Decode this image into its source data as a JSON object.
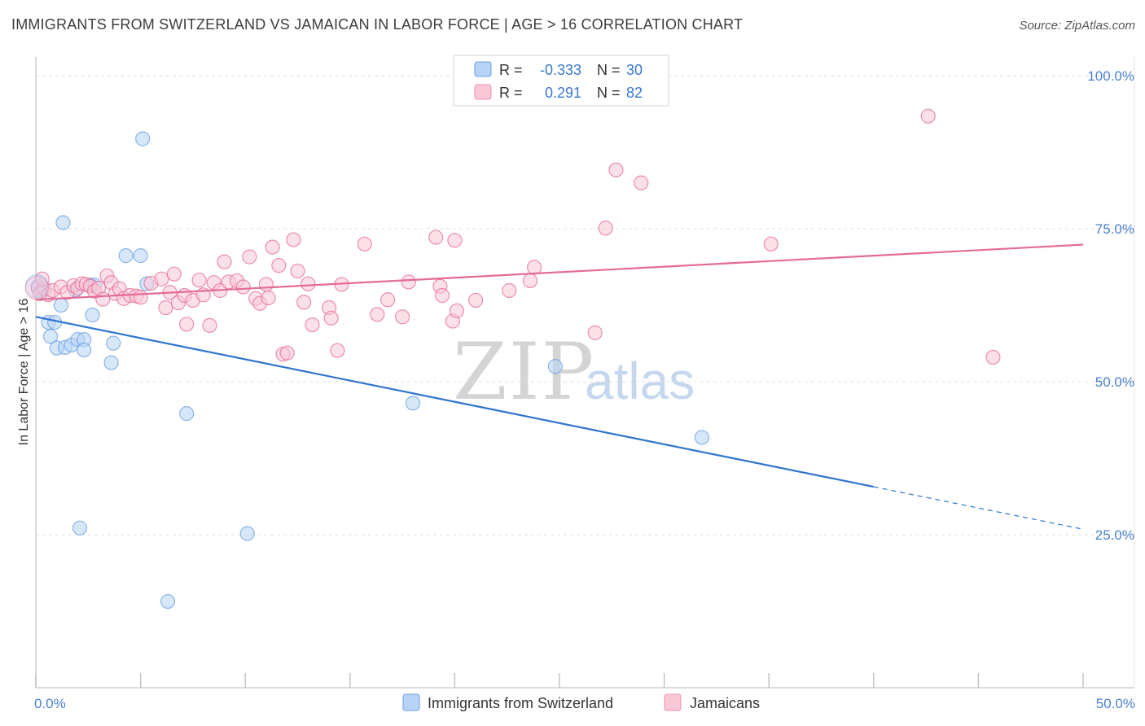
{
  "title": "IMMIGRANTS FROM SWITZERLAND VS JAMAICAN IN LABOR FORCE | AGE > 16 CORRELATION CHART",
  "source": "Source: ZipAtlas.com",
  "watermark": {
    "zip": "ZIP",
    "atlas": "atlas"
  },
  "legend_top": [
    {
      "r_label": "R =",
      "r_value": "-0.333",
      "n_label": "N =",
      "n_value": "30",
      "fill": "#b7d3f5",
      "stroke": "#6a9fe0"
    },
    {
      "r_label": "R =",
      "r_value": "0.291",
      "n_label": "N =",
      "n_value": "82",
      "fill": "#f9c7d6",
      "stroke": "#ec91ad"
    }
  ],
  "legend_bottom": [
    {
      "label": "Immigrants from Switzerland",
      "fill": "#b7d3f5",
      "stroke": "#6a9fe0"
    },
    {
      "label": "Jamaicans",
      "fill": "#f9c7d6",
      "stroke": "#ec91ad"
    }
  ],
  "chart_data": {
    "type": "scatter",
    "title": "IMMIGRANTS FROM SWITZERLAND VS JAMAICAN IN LABOR FORCE | AGE > 16 CORRELATION CHART",
    "xlabel": "",
    "ylabel": "In Labor Force | Age > 16",
    "xlim": [
      0,
      50
    ],
    "ylim": [
      0,
      102
    ],
    "x_ticks": [
      0,
      50
    ],
    "x_tick_labels": [
      "0.0%",
      "50.0%"
    ],
    "y_ticks": [
      25,
      50,
      75,
      100
    ],
    "y_tick_labels": [
      "25.0%",
      "50.0%",
      "75.0%",
      "100.0%"
    ],
    "grid": true,
    "legend_position": "top-center",
    "series": [
      {
        "name": "Immigrants from Switzerland",
        "color": "#6a9fe0",
        "fill": "#b7d3f5",
        "trend": {
          "x": [
            0,
            40,
            50
          ],
          "y": [
            60.6,
            32.8,
            25.9
          ],
          "solid_until": 40
        },
        "points": [
          [
            0.1,
            65.6
          ],
          [
            0.3,
            64.7
          ],
          [
            0.6,
            59.7
          ],
          [
            0.7,
            57.4
          ],
          [
            0.9,
            59.7
          ],
          [
            1.0,
            55.5
          ],
          [
            1.2,
            62.5
          ],
          [
            1.3,
            76.0
          ],
          [
            1.4,
            55.6
          ],
          [
            1.7,
            56.0
          ],
          [
            1.9,
            65.0
          ],
          [
            2.0,
            56.9
          ],
          [
            2.3,
            56.9
          ],
          [
            2.3,
            55.2
          ],
          [
            2.6,
            65.8
          ],
          [
            2.7,
            60.9
          ],
          [
            2.8,
            65.8
          ],
          [
            3.6,
            53.1
          ],
          [
            3.7,
            56.3
          ],
          [
            4.3,
            70.6
          ],
          [
            5.0,
            70.6
          ],
          [
            5.1,
            89.7
          ],
          [
            5.3,
            66.0
          ],
          [
            6.3,
            14.1
          ],
          [
            7.2,
            44.8
          ],
          [
            10.1,
            25.2
          ],
          [
            2.1,
            26.1
          ],
          [
            18.0,
            46.5
          ],
          [
            24.8,
            52.5
          ],
          [
            31.8,
            40.9
          ]
        ]
      },
      {
        "name": "Jamaicans",
        "color": "#e46b94",
        "fill": "#f9c7d6",
        "trend": {
          "x": [
            0,
            50
          ],
          "y": [
            63.4,
            72.4
          ],
          "solid_until": 50
        },
        "points": [
          [
            0.1,
            65.3
          ],
          [
            0.2,
            64.4
          ],
          [
            0.4,
            65.2
          ],
          [
            0.6,
            64.2
          ],
          [
            0.8,
            64.9
          ],
          [
            1.2,
            65.5
          ],
          [
            1.5,
            64.6
          ],
          [
            1.8,
            65.7
          ],
          [
            2.0,
            65.3
          ],
          [
            2.2,
            66.0
          ],
          [
            2.4,
            65.9
          ],
          [
            2.6,
            65.6
          ],
          [
            2.8,
            64.8
          ],
          [
            3.0,
            65.3
          ],
          [
            3.2,
            63.5
          ],
          [
            3.4,
            67.3
          ],
          [
            3.6,
            66.2
          ],
          [
            3.8,
            64.4
          ],
          [
            4.0,
            65.2
          ],
          [
            4.2,
            63.6
          ],
          [
            4.5,
            64.1
          ],
          [
            4.8,
            64.0
          ],
          [
            5.0,
            63.8
          ],
          [
            5.5,
            66.1
          ],
          [
            6.0,
            66.8
          ],
          [
            6.2,
            62.1
          ],
          [
            6.4,
            64.6
          ],
          [
            6.6,
            67.6
          ],
          [
            6.8,
            62.9
          ],
          [
            7.1,
            64.1
          ],
          [
            7.2,
            59.4
          ],
          [
            7.5,
            63.3
          ],
          [
            7.8,
            66.6
          ],
          [
            8.0,
            64.2
          ],
          [
            8.3,
            59.2
          ],
          [
            8.5,
            66.2
          ],
          [
            8.8,
            64.9
          ],
          [
            9.0,
            69.6
          ],
          [
            9.2,
            66.3
          ],
          [
            9.6,
            66.5
          ],
          [
            9.9,
            65.5
          ],
          [
            10.2,
            70.4
          ],
          [
            10.5,
            63.6
          ],
          [
            10.7,
            62.8
          ],
          [
            11.0,
            65.9
          ],
          [
            11.1,
            63.7
          ],
          [
            11.3,
            72.0
          ],
          [
            11.6,
            69.0
          ],
          [
            11.8,
            54.5
          ],
          [
            12.0,
            54.7
          ],
          [
            12.3,
            73.2
          ],
          [
            12.5,
            68.1
          ],
          [
            12.8,
            63.0
          ],
          [
            13.0,
            66.0
          ],
          [
            13.2,
            59.3
          ],
          [
            14.0,
            62.1
          ],
          [
            14.1,
            60.4
          ],
          [
            14.4,
            55.1
          ],
          [
            14.6,
            65.9
          ],
          [
            15.7,
            72.5
          ],
          [
            16.3,
            61.0
          ],
          [
            16.8,
            63.4
          ],
          [
            17.5,
            60.6
          ],
          [
            17.8,
            66.3
          ],
          [
            19.1,
            73.6
          ],
          [
            19.3,
            65.6
          ],
          [
            19.4,
            64.1
          ],
          [
            19.9,
            59.9
          ],
          [
            20.0,
            73.1
          ],
          [
            20.1,
            61.6
          ],
          [
            21.0,
            63.3
          ],
          [
            22.6,
            64.9
          ],
          [
            23.6,
            66.5
          ],
          [
            23.8,
            68.7
          ],
          [
            26.7,
            58.0
          ],
          [
            27.2,
            75.1
          ],
          [
            27.7,
            84.6
          ],
          [
            28.9,
            82.5
          ],
          [
            35.1,
            72.5
          ],
          [
            42.6,
            93.4
          ],
          [
            45.7,
            54.0
          ],
          [
            0.3,
            66.8
          ]
        ]
      }
    ]
  }
}
